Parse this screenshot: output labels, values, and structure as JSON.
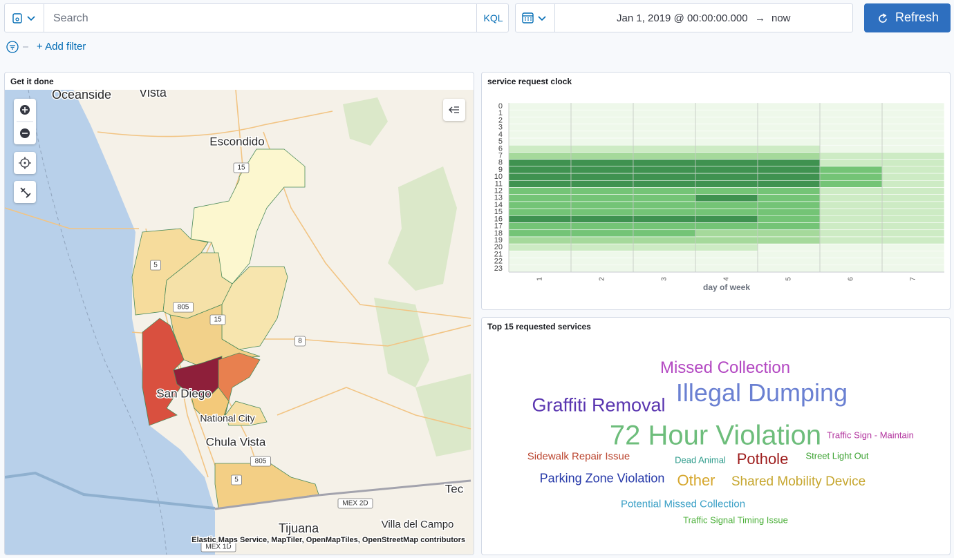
{
  "query_bar": {
    "search_placeholder": "Search",
    "query_language": "KQL",
    "time_start": "Jan 1, 2019 @ 00:00:00.000",
    "time_arrow": "→",
    "time_end": "now",
    "refresh_button": "Refresh"
  },
  "filter_bar": {
    "add_filter": "+ Add filter"
  },
  "map_panel": {
    "title": "Get it done",
    "places": [
      "Oceanside",
      "Vista",
      "Escondido",
      "San Diego",
      "National City",
      "Chula Vista",
      "Tijuana",
      "Villa del Campo",
      "Tec"
    ],
    "road_shields": [
      "15",
      "5",
      "805",
      "15",
      "8",
      "805",
      "5",
      "MEX 2D",
      "MEX 1D"
    ],
    "attribution": "Elastic Maps Service, MapTiler, OpenMapTiles, OpenStreetMap contributors"
  },
  "heatmap_panel": {
    "chart_data": {
      "type": "heatmap",
      "title": "service request clock",
      "x_label": "day of week",
      "x_categories": [
        "1",
        "2",
        "3",
        "4",
        "5",
        "6",
        "7"
      ],
      "y_categories": [
        "0",
        "1",
        "2",
        "3",
        "4",
        "5",
        "6",
        "7",
        "8",
        "9",
        "10",
        "11",
        "12",
        "13",
        "14",
        "15",
        "16",
        "17",
        "18",
        "19",
        "20",
        "21",
        "22",
        "23"
      ],
      "colors": [
        "#eef8ea",
        "#cdebc4",
        "#a5d99b",
        "#74c476",
        "#3f9250"
      ],
      "values": [
        [
          0,
          0,
          0,
          0,
          0,
          0,
          0
        ],
        [
          0,
          0,
          0,
          0,
          0,
          0,
          0
        ],
        [
          0,
          0,
          0,
          0,
          0,
          0,
          0
        ],
        [
          0,
          0,
          0,
          0,
          0,
          0,
          0
        ],
        [
          0,
          0,
          0,
          0,
          0,
          0,
          0
        ],
        [
          0,
          0,
          0,
          0,
          0,
          0,
          0
        ],
        [
          1,
          1,
          1,
          1,
          1,
          0,
          0
        ],
        [
          2,
          2,
          2,
          2,
          2,
          1,
          1
        ],
        [
          4,
          4,
          4,
          4,
          4,
          1,
          1
        ],
        [
          4,
          4,
          4,
          4,
          4,
          3,
          1
        ],
        [
          4,
          4,
          4,
          4,
          4,
          3,
          1
        ],
        [
          4,
          4,
          4,
          4,
          4,
          3,
          1
        ],
        [
          3,
          3,
          3,
          3,
          3,
          1,
          1
        ],
        [
          3,
          3,
          3,
          4,
          3,
          1,
          1
        ],
        [
          3,
          3,
          3,
          3,
          3,
          1,
          1
        ],
        [
          3,
          3,
          3,
          3,
          3,
          1,
          1
        ],
        [
          4,
          4,
          4,
          4,
          3,
          1,
          1
        ],
        [
          3,
          3,
          3,
          3,
          3,
          1,
          1
        ],
        [
          3,
          3,
          3,
          2,
          2,
          1,
          1
        ],
        [
          2,
          2,
          2,
          2,
          2,
          1,
          1
        ],
        [
          1,
          1,
          1,
          1,
          0,
          0,
          0
        ],
        [
          0,
          0,
          0,
          0,
          0,
          0,
          0
        ],
        [
          0,
          0,
          0,
          0,
          0,
          0,
          0
        ],
        [
          0,
          0,
          0,
          0,
          0,
          0,
          0
        ]
      ]
    }
  },
  "tagcloud_panel": {
    "title": "Top 15 requested services",
    "words": [
      {
        "text": "Missed Collection",
        "color": "#b348c2"
      },
      {
        "text": "Illegal Dumping",
        "color": "#6a80d2"
      },
      {
        "text": "Graffiti Removal",
        "color": "#5a36b0"
      },
      {
        "text": "72 Hour Violation",
        "color": "#6dbd7b"
      },
      {
        "text": "Traffic Sign - Maintain",
        "color": "#b3359f"
      },
      {
        "text": "Sidewalk Repair Issue",
        "color": "#bb4630"
      },
      {
        "text": "Dead Animal",
        "color": "#2f9c8c"
      },
      {
        "text": "Pothole",
        "color": "#9e1d1d"
      },
      {
        "text": "Street Light Out",
        "color": "#3ca232"
      },
      {
        "text": "Parking Zone Violation",
        "color": "#2437a8"
      },
      {
        "text": "Other",
        "color": "#d6a72e"
      },
      {
        "text": "Shared Mobility Device",
        "color": "#c6a62e"
      },
      {
        "text": "Potential Missed Collection",
        "color": "#3ba0c6"
      },
      {
        "text": "Traffic Signal Timing Issue",
        "color": "#4db03b"
      }
    ]
  }
}
